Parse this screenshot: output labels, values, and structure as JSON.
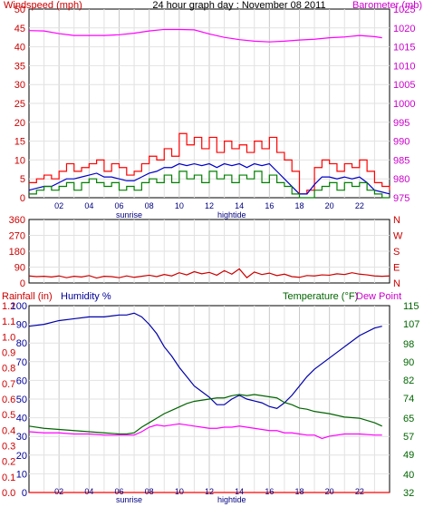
{
  "chart_data": [
    {
      "type": "line",
      "title": "24 hour graph day : November 08 2011",
      "ylabel_left": "Windspeed (mph)",
      "ylabel_right": "Barometer (mb)",
      "x_ticks": [
        "02",
        "04",
        "06",
        "08",
        "10",
        "12",
        "14",
        "16",
        "18",
        "20",
        "22"
      ],
      "x_annotations": [
        "sunrise",
        "hightide"
      ],
      "xlim": [
        0,
        24
      ],
      "ylim_left": [
        0,
        50
      ],
      "y_ticks_left": [
        0,
        5,
        10,
        15,
        20,
        25,
        30,
        35,
        40,
        45,
        50
      ],
      "ylim_right": [
        975,
        1025
      ],
      "y_ticks_right": [
        975,
        980,
        985,
        990,
        995,
        1000,
        1005,
        1010,
        1015,
        1020,
        1025
      ],
      "grid": true,
      "series": [
        {
          "name": "Windspeed (mph)",
          "axis": "left",
          "color": "#ff0000",
          "kind": "step",
          "x": [
            0,
            0.5,
            1,
            1.5,
            2,
            2.5,
            3,
            3.5,
            4,
            4.5,
            5,
            5.5,
            6,
            6.5,
            7,
            7.5,
            8,
            8.5,
            9,
            9.5,
            10,
            10.5,
            11,
            11.5,
            12,
            12.5,
            13,
            13.5,
            14,
            14.5,
            15,
            15.5,
            16,
            16.5,
            17,
            17.5,
            18,
            18.5,
            19,
            19.5,
            20,
            20.5,
            21,
            21.5,
            22,
            22.5,
            23,
            23.5,
            24
          ],
          "values": [
            4,
            5,
            6,
            5,
            7,
            9,
            7,
            8,
            9,
            10,
            7,
            9,
            8,
            6,
            7,
            9,
            11,
            10,
            13,
            11,
            17,
            14,
            16,
            13,
            16,
            12,
            15,
            13,
            14,
            12,
            15,
            13,
            16,
            12,
            10,
            7,
            1,
            2,
            8,
            10,
            9,
            7,
            9,
            8,
            10,
            7,
            4,
            3,
            2
          ]
        },
        {
          "color": "#0000cc",
          "axis": "left",
          "kind": "line",
          "x": [
            0,
            0.5,
            1,
            1.5,
            2,
            2.5,
            3,
            3.5,
            4,
            4.5,
            5,
            5.5,
            6,
            6.5,
            7,
            7.5,
            8,
            8.5,
            9,
            9.5,
            10,
            10.5,
            11,
            11.5,
            12,
            12.5,
            13,
            13.5,
            14,
            14.5,
            15,
            15.5,
            16,
            16.5,
            17,
            17.5,
            18,
            18.5,
            19,
            19.5,
            20,
            20.5,
            21,
            21.5,
            22,
            22.5,
            23,
            23.5,
            24
          ],
          "values": [
            2,
            2.5,
            3,
            3,
            4,
            5,
            5,
            5.5,
            6,
            6.5,
            5.5,
            5.5,
            5,
            4.5,
            4.5,
            5.5,
            6.5,
            7,
            8,
            8,
            9,
            8.5,
            9,
            8.5,
            9,
            8,
            9,
            8.5,
            9,
            8,
            9,
            8.5,
            9,
            7,
            5,
            3,
            1,
            1,
            3.5,
            5.5,
            5.5,
            5,
            5.5,
            5,
            5.5,
            4,
            2,
            1.5,
            1
          ]
        },
        {
          "color": "#008000",
          "axis": "left",
          "kind": "step",
          "x": [
            0,
            0.5,
            1,
            1.5,
            2,
            2.5,
            3,
            3.5,
            4,
            4.5,
            5,
            5.5,
            6,
            6.5,
            7,
            7.5,
            8,
            8.5,
            9,
            9.5,
            10,
            10.5,
            11,
            11.5,
            12,
            12.5,
            13,
            13.5,
            14,
            14.5,
            15,
            15.5,
            16,
            16.5,
            17,
            17.5,
            18,
            18.5,
            19,
            19.5,
            20,
            20.5,
            21,
            21.5,
            22,
            22.5,
            23,
            23.5,
            24
          ],
          "values": [
            1,
            2,
            3,
            2,
            3,
            4,
            2,
            4,
            5,
            4,
            3,
            4,
            2,
            3,
            2,
            4,
            5,
            4,
            6,
            4,
            7,
            5,
            6,
            4,
            7,
            5,
            6,
            4,
            6,
            5,
            7,
            4,
            6,
            4,
            3,
            1,
            0,
            0,
            2,
            3,
            4,
            2,
            4,
            3,
            4,
            2,
            1,
            0,
            0
          ]
        },
        {
          "name": "Barometer (mb)",
          "axis": "right",
          "color": "#ff00ff",
          "kind": "line",
          "x": [
            0,
            1,
            2,
            3,
            4,
            5,
            6,
            7,
            8,
            9,
            10,
            11,
            12,
            13,
            14,
            15,
            16,
            17,
            18,
            19,
            20,
            21,
            22,
            23,
            23.5
          ],
          "values": [
            1019.3,
            1019.2,
            1018.5,
            1018.0,
            1018.0,
            1018.0,
            1018.2,
            1018.6,
            1019.2,
            1019.6,
            1019.6,
            1019.5,
            1018.4,
            1017.5,
            1016.9,
            1016.5,
            1016.3,
            1016.5,
            1016.8,
            1017.0,
            1017.4,
            1017.6,
            1018.0,
            1017.7,
            1017.4
          ]
        }
      ]
    },
    {
      "type": "line",
      "ylabel_right": "N W S E N",
      "y_ticks_left": [
        0,
        90,
        180,
        270,
        360
      ],
      "ylim_left": [
        0,
        360
      ],
      "y_letters_right": [
        "N",
        "W",
        "S",
        "E",
        "N"
      ],
      "xlim": [
        0,
        24
      ],
      "grid": true,
      "series": [
        {
          "color": "#cc0000",
          "axis": "left",
          "kind": "line",
          "x": [
            0,
            0.5,
            1,
            1.5,
            2,
            2.5,
            3,
            3.5,
            4,
            4.5,
            5,
            5.5,
            6,
            6.5,
            7,
            7.5,
            8,
            8.5,
            9,
            9.5,
            10,
            10.5,
            11,
            11.5,
            12,
            12.5,
            13,
            13.5,
            14,
            14.5,
            15,
            15.5,
            16,
            16.5,
            17,
            17.5,
            18,
            18.5,
            19,
            19.5,
            20,
            20.5,
            21,
            21.5,
            22,
            22.5,
            23,
            23.5,
            24
          ],
          "values": [
            40,
            36,
            38,
            34,
            40,
            30,
            38,
            34,
            42,
            28,
            38,
            36,
            30,
            40,
            32,
            38,
            44,
            36,
            48,
            40,
            58,
            46,
            64,
            52,
            60,
            44,
            70,
            50,
            80,
            30,
            62,
            48,
            56,
            42,
            50,
            36,
            32,
            42,
            40,
            46,
            44,
            52,
            48,
            58,
            50,
            46,
            40,
            38,
            40
          ]
        }
      ]
    },
    {
      "type": "line",
      "ylabel_left": "Rainfall (in)",
      "ylabel_left2": "Humidity %",
      "ylabel_right": "Temperature (°F)",
      "ylabel_right2": "Dew Point",
      "x_ticks": [
        "02",
        "04",
        "06",
        "08",
        "10",
        "12",
        "14",
        "16",
        "18",
        "20",
        "22"
      ],
      "x_annotations": [
        "sunrise",
        "hightide"
      ],
      "xlim": [
        0,
        24
      ],
      "y_ticks_humidity": [
        0,
        10,
        20,
        30,
        40,
        50,
        60,
        70,
        80,
        90,
        100
      ],
      "ylim_humidity": [
        0,
        100
      ],
      "y_ticks_rain": [
        "0.0",
        "0.1",
        "0.2",
        "0.3",
        "0.4",
        "0.5",
        "0.6",
        "0.7",
        "0.8",
        "0.9",
        "1.0",
        "1.1",
        "1.2"
      ],
      "ylim_rain": [
        0,
        1.2
      ],
      "y_ticks_temp": [
        32,
        40,
        49,
        57,
        65,
        74,
        82,
        90,
        98,
        107,
        115
      ],
      "ylim_temp": [
        32,
        115
      ],
      "grid": true,
      "series": [
        {
          "name": "Humidity %",
          "axis": "humidity",
          "color": "#0000aa",
          "kind": "line",
          "x": [
            0,
            1,
            2,
            3,
            4,
            5,
            6,
            6.5,
            7,
            7.5,
            8,
            8.5,
            9,
            9.5,
            10,
            10.5,
            11,
            11.5,
            12,
            12.5,
            13,
            13.5,
            14,
            14.5,
            15,
            15.5,
            16,
            16.5,
            17,
            17.5,
            18,
            18.5,
            19,
            20,
            21,
            22,
            23,
            23.5
          ],
          "values": [
            89,
            90,
            92,
            93,
            94,
            94,
            95,
            95,
            96,
            94,
            90,
            85,
            78,
            73,
            67,
            62,
            57,
            54,
            51,
            47,
            47,
            50,
            52,
            50,
            49,
            48,
            46,
            45,
            48,
            52,
            57,
            62,
            66,
            72,
            78,
            84,
            88,
            89
          ]
        },
        {
          "name": "Temperature (°F)",
          "axis": "temp",
          "color": "#006400",
          "kind": "line",
          "x": [
            0,
            1,
            2,
            3,
            4,
            5,
            6,
            6.5,
            7,
            7.5,
            8,
            8.5,
            9,
            9.5,
            10,
            10.5,
            11,
            11.5,
            12,
            12.5,
            13,
            13.5,
            14,
            14.5,
            15,
            15.5,
            16,
            16.5,
            17,
            17.5,
            18,
            18.5,
            19,
            20,
            21,
            22,
            23,
            23.5
          ],
          "values": [
            61.5,
            60.5,
            60,
            59.5,
            59,
            58.5,
            58,
            58,
            58.5,
            61,
            63,
            65,
            67,
            68.5,
            70,
            71.5,
            72.5,
            73,
            73.5,
            74,
            74,
            75,
            75.5,
            75,
            75.5,
            75,
            74.5,
            74,
            72,
            71,
            69.5,
            69,
            68,
            67,
            65.5,
            65,
            63,
            61.5
          ]
        },
        {
          "name": "Dew Point",
          "axis": "temp",
          "color": "#ff00ff",
          "kind": "line",
          "x": [
            0,
            1,
            2,
            3,
            4,
            5,
            6,
            6.5,
            7,
            7.5,
            8,
            8.5,
            9,
            9.5,
            10,
            10.5,
            11,
            11.5,
            12,
            12.5,
            13,
            13.5,
            14,
            14.5,
            15,
            15.5,
            16,
            16.5,
            17,
            17.5,
            18,
            18.5,
            19,
            19.5,
            20,
            21,
            22,
            23,
            23.5
          ],
          "values": [
            59,
            58.5,
            58.5,
            58,
            58,
            57.5,
            57.5,
            57.5,
            57.5,
            59,
            61,
            62,
            61.5,
            62,
            62.5,
            62,
            61.5,
            61,
            60.5,
            60.5,
            61,
            61,
            61.5,
            61,
            60.5,
            60,
            59.5,
            59.5,
            58.5,
            58.5,
            58,
            57.5,
            57.5,
            56,
            57,
            58,
            58,
            57.5,
            57.5
          ]
        },
        {
          "name": "Rainfall (in)",
          "axis": "rain",
          "color": "#ff0000",
          "kind": "line",
          "x": [
            0,
            24
          ],
          "values": [
            0,
            0
          ]
        }
      ]
    }
  ]
}
